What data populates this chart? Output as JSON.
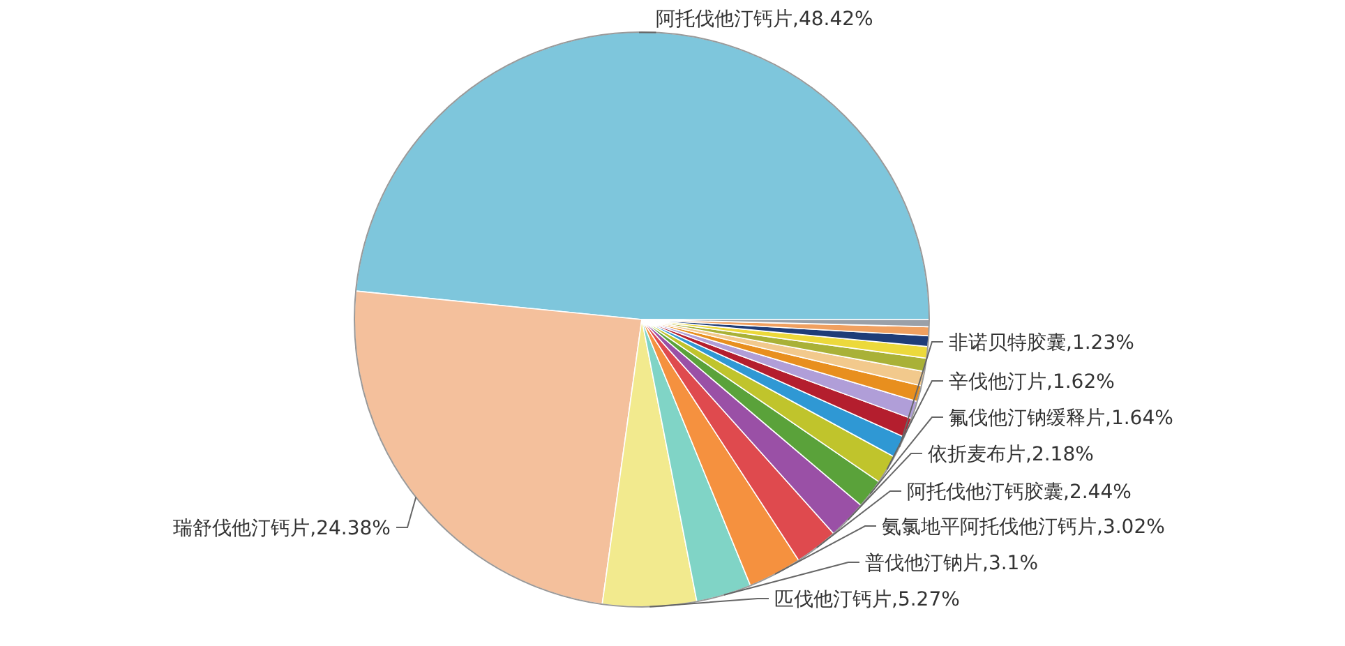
{
  "chart_data": {
    "type": "pie",
    "value_labels": [
      ",48.42%",
      ",24.38%",
      ",5.27%",
      ",3.1%",
      ",3.02%",
      ",2.44%",
      ",2.18%",
      ",1.64%",
      ",1.62%",
      ",1.23%",
      null,
      null,
      null,
      null,
      null,
      null,
      null,
      null,
      null
    ],
    "categories": [
      "阿托伐他汀钙片",
      "瑞舒伐他汀钙片",
      "匹伐他汀钙片",
      "普伐他汀钠片",
      "氨氯地平阿托伐他汀钙片",
      "阿托伐他汀钙胶囊",
      "依折麦布片",
      "氟伐他汀钠缓释片",
      "辛伐他汀片",
      "非诺贝特胶囊",
      null,
      null,
      null,
      null,
      null,
      null,
      null,
      null,
      null
    ],
    "values": [
      48.42,
      24.38,
      5.27,
      3.1,
      3.02,
      2.44,
      2.18,
      1.64,
      1.62,
      1.23,
      1.1,
      1.0,
      0.9,
      0.8,
      0.75,
      0.65,
      0.6,
      0.5,
      0.4
    ],
    "colors": [
      "#7ec6dc",
      "#f4c09c",
      "#f2ea8e",
      "#80d4c6",
      "#f5913f",
      "#df4a4e",
      "#9a50a6",
      "#5aa23a",
      "#c0c42c",
      "#2f98d4",
      "#b41e2e",
      "#b09ed8",
      "#e88f1e",
      "#f2c98c",
      "#a9b137",
      "#ecd93b",
      "#1f3d78",
      "#f0a060",
      "#9aa0a8"
    ]
  }
}
